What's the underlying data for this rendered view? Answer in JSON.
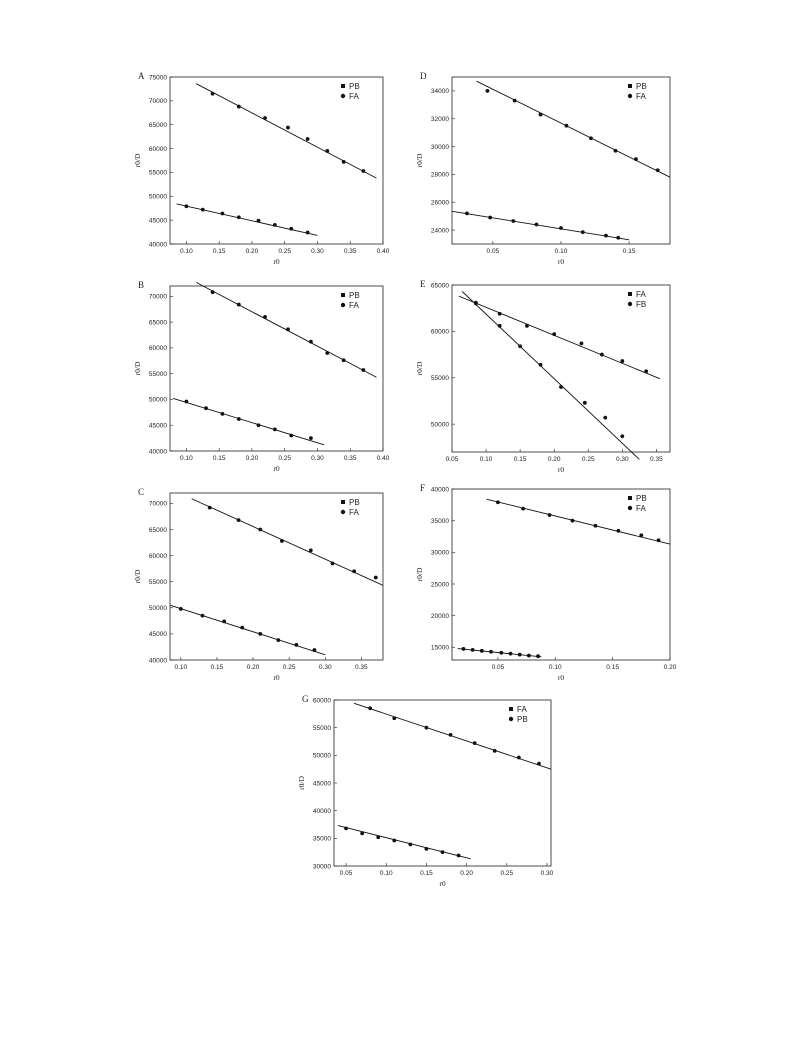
{
  "chart_data": [
    {
      "type": "scatter",
      "panel_label": "A",
      "xlabel": "r0",
      "ylabel": "r0/D",
      "xlim": [
        0.075,
        0.4
      ],
      "ylim": [
        40000,
        75000
      ],
      "xticks": [
        "0.10",
        "0.15",
        "0.20",
        "0.25",
        "0.30",
        "0.35",
        "0.40"
      ],
      "xtick_values": [
        0.1,
        0.15,
        0.2,
        0.25,
        0.3,
        0.35,
        0.4
      ],
      "yticks": [
        "40000",
        "45000",
        "50000",
        "55000",
        "60000",
        "65000",
        "70000",
        "75000"
      ],
      "ytick_values": [
        40000,
        45000,
        50000,
        55000,
        60000,
        65000,
        70000,
        75000
      ],
      "legend": [
        {
          "label": "PB",
          "marker": "square"
        },
        {
          "label": "FA",
          "marker": "circle"
        }
      ],
      "legend_position": "top-right",
      "series": [
        {
          "x": [
            0.1,
            0.125,
            0.155,
            0.18,
            0.21,
            0.235,
            0.26,
            0.285
          ],
          "y": [
            47900,
            47200,
            46400,
            45600,
            44900,
            44000,
            43200,
            42400
          ],
          "fit": [
            [
              0.085,
              48400
            ],
            [
              0.3,
              41800
            ]
          ]
        },
        {
          "x": [
            0.14,
            0.18,
            0.22,
            0.255,
            0.285,
            0.315,
            0.34,
            0.37
          ],
          "y": [
            71500,
            68800,
            66400,
            64400,
            62000,
            59500,
            57200,
            55300
          ],
          "fit": [
            [
              0.115,
              73600
            ],
            [
              0.39,
              53800
            ]
          ]
        }
      ]
    },
    {
      "type": "scatter",
      "panel_label": "D",
      "xlabel": "r0",
      "ylabel": "r0/D",
      "xlim": [
        0.02,
        0.18
      ],
      "ylim": [
        23000,
        35000
      ],
      "xticks": [
        "0.05",
        "0.10",
        "0.15"
      ],
      "xtick_values": [
        0.05,
        0.1,
        0.15
      ],
      "yticks": [
        "24000",
        "26000",
        "28000",
        "30000",
        "32000",
        "34000"
      ],
      "ytick_values": [
        24000,
        26000,
        28000,
        30000,
        32000,
        34000
      ],
      "legend": [
        {
          "label": "PB",
          "marker": "square"
        },
        {
          "label": "FA",
          "marker": "circle"
        }
      ],
      "legend_position": "top-right",
      "series": [
        {
          "x": [
            0.031,
            0.048,
            0.065,
            0.082,
            0.1,
            0.116,
            0.133,
            0.142
          ],
          "y": [
            25200,
            24900,
            24650,
            24400,
            24150,
            23850,
            23600,
            23450
          ],
          "fit": [
            [
              0.02,
              25350
            ],
            [
              0.15,
              23300
            ]
          ]
        },
        {
          "x": [
            0.046,
            0.066,
            0.085,
            0.104,
            0.122,
            0.14,
            0.155,
            0.171
          ],
          "y": [
            34000,
            33300,
            32300,
            31500,
            30600,
            29700,
            29100,
            28300
          ],
          "fit": [
            [
              0.038,
              34700
            ],
            [
              0.18,
              27800
            ]
          ]
        }
      ]
    },
    {
      "type": "scatter",
      "panel_label": "B",
      "xlabel": "r0",
      "ylabel": "r0/D",
      "xlim": [
        0.075,
        0.4
      ],
      "ylim": [
        40000,
        72000
      ],
      "xticks": [
        "0.10",
        "0.15",
        "0.20",
        "0.25",
        "0.30",
        "0.35",
        "0.40"
      ],
      "xtick_values": [
        0.1,
        0.15,
        0.2,
        0.25,
        0.3,
        0.35,
        0.4
      ],
      "yticks": [
        "40000",
        "45000",
        "50000",
        "55000",
        "60000",
        "65000",
        "70000"
      ],
      "ytick_values": [
        40000,
        45000,
        50000,
        55000,
        60000,
        65000,
        70000
      ],
      "legend": [
        {
          "label": "PB",
          "marker": "square"
        },
        {
          "label": "FA",
          "marker": "circle"
        }
      ],
      "legend_position": "top-right",
      "series": [
        {
          "x": [
            0.1,
            0.13,
            0.155,
            0.18,
            0.21,
            0.235,
            0.26,
            0.29
          ],
          "y": [
            49600,
            48300,
            47200,
            46200,
            45000,
            44200,
            43000,
            42500
          ],
          "fit": [
            [
              0.08,
              50200
            ],
            [
              0.31,
              41200
            ]
          ]
        },
        {
          "x": [
            0.14,
            0.18,
            0.22,
            0.255,
            0.29,
            0.315,
            0.34,
            0.37
          ],
          "y": [
            70800,
            68400,
            66000,
            63600,
            61200,
            59000,
            57600,
            55700
          ],
          "fit": [
            [
              0.115,
              72700
            ],
            [
              0.39,
              54300
            ]
          ]
        }
      ]
    },
    {
      "type": "scatter",
      "panel_label": "E",
      "xlabel": "r0",
      "ylabel": "r0/D",
      "xlim": [
        0.05,
        0.37
      ],
      "ylim": [
        47000,
        65000
      ],
      "xticks": [
        "0.05",
        "0.10",
        "0.15",
        "0.20",
        "0.25",
        "0.30",
        "0.35"
      ],
      "xtick_values": [
        0.05,
        0.1,
        0.15,
        0.2,
        0.25,
        0.3,
        0.35
      ],
      "yticks": [
        "50000",
        "55000",
        "60000",
        "65000"
      ],
      "ytick_values": [
        50000,
        55000,
        60000,
        65000
      ],
      "legend": [
        {
          "label": "FA",
          "marker": "square"
        },
        {
          "label": "FB",
          "marker": "circle"
        }
      ],
      "legend_position": "top-right",
      "series": [
        {
          "x": [
            0.085,
            0.12,
            0.16,
            0.2,
            0.24,
            0.27,
            0.3,
            0.335
          ],
          "y": [
            63100,
            61900,
            60600,
            59700,
            58700,
            57500,
            56800,
            55700
          ],
          "fit": [
            [
              0.06,
              63800
            ],
            [
              0.355,
              54900
            ]
          ]
        },
        {
          "x": [
            0.085,
            0.12,
            0.15,
            0.18,
            0.21,
            0.245,
            0.275,
            0.3
          ],
          "y": [
            63000,
            60600,
            58400,
            56400,
            54000,
            52300,
            50700,
            48700
          ],
          "fit": [
            [
              0.065,
              64300
            ],
            [
              0.325,
              46200
            ]
          ]
        }
      ]
    },
    {
      "type": "scatter",
      "panel_label": "C",
      "xlabel": "r0",
      "ylabel": "r0/D",
      "xlim": [
        0.085,
        0.38
      ],
      "ylim": [
        40000,
        72000
      ],
      "xticks": [
        "0.10",
        "0.15",
        "0.20",
        "0.25",
        "0.30",
        "0.35"
      ],
      "xtick_values": [
        0.1,
        0.15,
        0.2,
        0.25,
        0.3,
        0.35
      ],
      "yticks": [
        "40000",
        "45000",
        "50000",
        "55000",
        "60000",
        "65000",
        "70000"
      ],
      "ytick_values": [
        40000,
        45000,
        50000,
        55000,
        60000,
        65000,
        70000
      ],
      "legend": [
        {
          "label": "PB",
          "marker": "square"
        },
        {
          "label": "FA",
          "marker": "circle"
        }
      ],
      "legend_position": "top-right",
      "series": [
        {
          "x": [
            0.1,
            0.13,
            0.16,
            0.185,
            0.21,
            0.235,
            0.26,
            0.285
          ],
          "y": [
            49800,
            48500,
            47400,
            46200,
            45000,
            43800,
            42900,
            41900
          ],
          "fit": [
            [
              0.085,
              50500
            ],
            [
              0.3,
              41000
            ]
          ]
        },
        {
          "x": [
            0.14,
            0.18,
            0.21,
            0.24,
            0.28,
            0.31,
            0.34,
            0.37
          ],
          "y": [
            69200,
            66800,
            65000,
            62800,
            61000,
            58500,
            57000,
            55800
          ],
          "fit": [
            [
              0.115,
              70900
            ],
            [
              0.38,
              54300
            ]
          ]
        }
      ]
    },
    {
      "type": "scatter",
      "panel_label": "F",
      "xlabel": "r0",
      "ylabel": "r0/D",
      "xlim": [
        0.01,
        0.2
      ],
      "ylim": [
        13000,
        40000
      ],
      "xticks": [
        "0.05",
        "0.10",
        "0.15",
        "0.20"
      ],
      "xtick_values": [
        0.05,
        0.1,
        0.15,
        0.2
      ],
      "yticks": [
        "15000",
        "20000",
        "25000",
        "30000",
        "35000",
        "40000"
      ],
      "ytick_values": [
        15000,
        20000,
        25000,
        30000,
        35000,
        40000
      ],
      "legend": [
        {
          "label": "PB",
          "marker": "square"
        },
        {
          "label": "FA",
          "marker": "circle"
        }
      ],
      "legend_position": "top-right",
      "series": [
        {
          "x": [
            0.02,
            0.028,
            0.036,
            0.044,
            0.053,
            0.061,
            0.069,
            0.077,
            0.085
          ],
          "y": [
            14750,
            14600,
            14450,
            14300,
            14150,
            14000,
            13850,
            13700,
            13600
          ],
          "fit": [
            [
              0.015,
              14800
            ],
            [
              0.088,
              13500
            ]
          ]
        },
        {
          "x": [
            0.05,
            0.072,
            0.095,
            0.115,
            0.135,
            0.155,
            0.175,
            0.19
          ],
          "y": [
            37900,
            36900,
            35900,
            35000,
            34200,
            33400,
            32700,
            31900
          ],
          "fit": [
            [
              0.04,
              38400
            ],
            [
              0.2,
              31300
            ]
          ]
        }
      ]
    },
    {
      "type": "scatter",
      "panel_label": "G",
      "xlabel": "r0",
      "ylabel": "r0/D",
      "xlim": [
        0.035,
        0.305
      ],
      "ylim": [
        30000,
        60000
      ],
      "xticks": [
        "0.05",
        "0.10",
        "0.15",
        "0.20",
        "0.25",
        "0.30"
      ],
      "xtick_values": [
        0.05,
        0.1,
        0.15,
        0.2,
        0.25,
        0.3
      ],
      "yticks": [
        "30000",
        "35000",
        "40000",
        "45000",
        "50000",
        "55000",
        "60000"
      ],
      "ytick_values": [
        30000,
        35000,
        40000,
        45000,
        50000,
        55000,
        60000
      ],
      "legend": [
        {
          "label": "FA",
          "marker": "square"
        },
        {
          "label": "PB",
          "marker": "circle"
        }
      ],
      "legend_position": "top-right",
      "series": [
        {
          "x": [
            0.05,
            0.07,
            0.09,
            0.11,
            0.13,
            0.15,
            0.17,
            0.19
          ],
          "y": [
            36800,
            35900,
            35200,
            34600,
            33900,
            33100,
            32500,
            31900
          ],
          "fit": [
            [
              0.04,
              37300
            ],
            [
              0.205,
              31300
            ]
          ]
        },
        {
          "x": [
            0.08,
            0.11,
            0.15,
            0.18,
            0.21,
            0.235,
            0.265,
            0.29
          ],
          "y": [
            58500,
            56700,
            55000,
            53700,
            52200,
            50800,
            49600,
            48500
          ],
          "fit": [
            [
              0.06,
              59400
            ],
            [
              0.305,
              47500
            ]
          ]
        }
      ]
    }
  ]
}
